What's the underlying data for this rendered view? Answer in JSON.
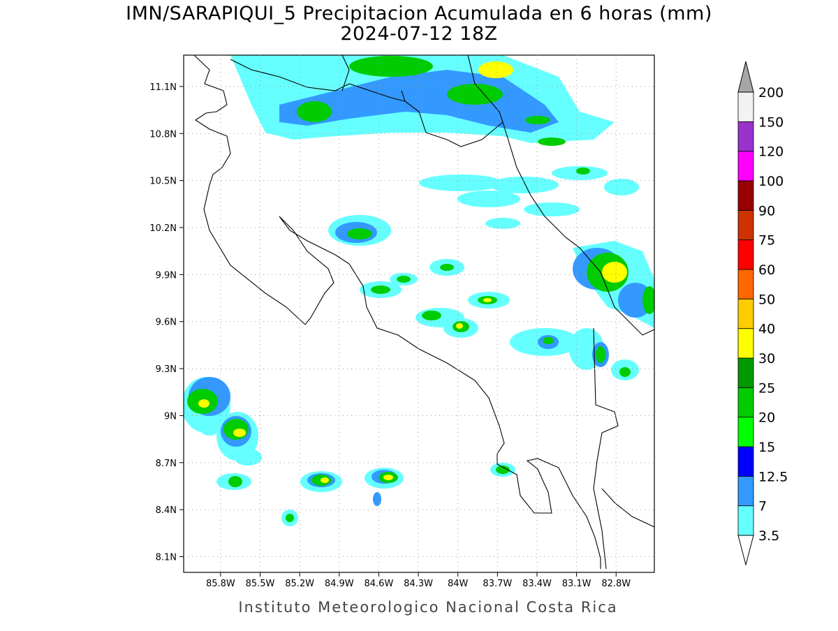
{
  "header": {
    "title": "IMN/SARAPIQUI_5 Precipitacion Acumulada en 6 horas (mm)",
    "subtitle": "2024-07-12 18Z"
  },
  "map": {
    "xlim": [
      -86.08,
      -82.51
    ],
    "ylim": [
      8.0,
      11.3
    ],
    "xticks": [
      {
        "value": -85.8,
        "label": "85.8W"
      },
      {
        "value": -85.5,
        "label": "85.5W"
      },
      {
        "value": -85.2,
        "label": "85.2W"
      },
      {
        "value": -84.9,
        "label": "84.9W"
      },
      {
        "value": -84.6,
        "label": "84.6W"
      },
      {
        "value": -84.3,
        "label": "84.3W"
      },
      {
        "value": -84.0,
        "label": "84W"
      },
      {
        "value": -83.7,
        "label": "83.7W"
      },
      {
        "value": -83.4,
        "label": "83.4W"
      },
      {
        "value": -83.1,
        "label": "83.1W"
      },
      {
        "value": -82.8,
        "label": "82.8W"
      }
    ],
    "yticks": [
      {
        "value": 11.1,
        "label": "11.1N"
      },
      {
        "value": 10.8,
        "label": "10.8N"
      },
      {
        "value": 10.5,
        "label": "10.5N"
      },
      {
        "value": 10.2,
        "label": "10.2N"
      },
      {
        "value": 9.9,
        "label": "9.9N"
      },
      {
        "value": 9.6,
        "label": "9.6N"
      },
      {
        "value": 9.3,
        "label": "9.3N"
      },
      {
        "value": 9.0,
        "label": "9N"
      },
      {
        "value": 8.7,
        "label": "8.7N"
      },
      {
        "value": 8.4,
        "label": "8.4N"
      },
      {
        "value": 8.1,
        "label": "8.1N"
      }
    ],
    "grid": true
  },
  "colorbar": {
    "levels": [
      3.5,
      7,
      12.5,
      15,
      20,
      25,
      30,
      40,
      50,
      60,
      75,
      90,
      100,
      120,
      150,
      200
    ],
    "colors": [
      "#66ffff",
      "#3399ff",
      "#0000ff",
      "#00ff00",
      "#00cc00",
      "#009900",
      "#ffff00",
      "#ffcc00",
      "#ff6600",
      "#ff0000",
      "#cc3300",
      "#990000",
      "#ff00ff",
      "#9933cc",
      "#f2f2f2"
    ],
    "under_color": "#ffffff",
    "over_color": "#a6a6a6"
  },
  "footer": "Instituto Meteorologico Nacional Costa Rica"
}
